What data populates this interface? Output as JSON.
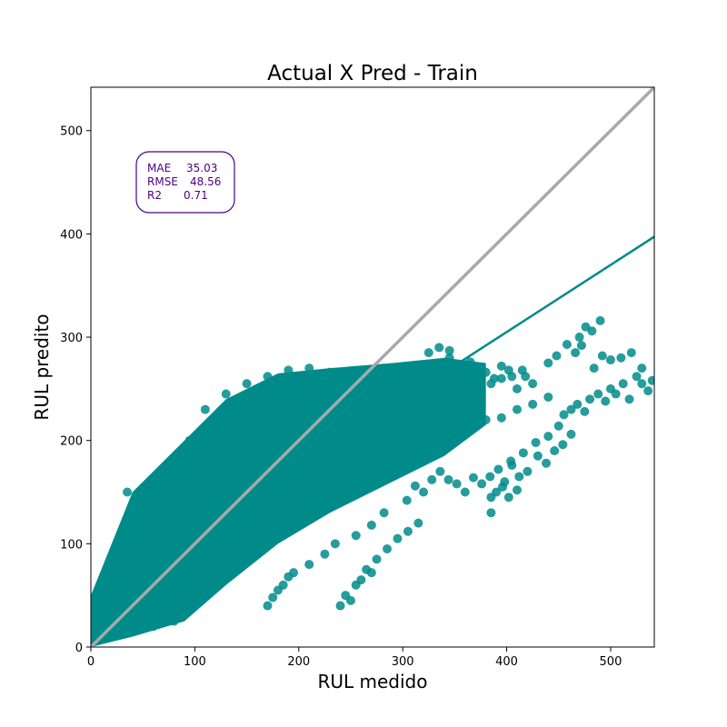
{
  "chart_data": {
    "type": "scatter",
    "title": "Actual X Pred - Train",
    "xlabel": "RUL medido",
    "ylabel": "RUL predito",
    "xlim": [
      0,
      542
    ],
    "ylim": [
      0,
      542
    ],
    "xticks": [
      0,
      100,
      200,
      300,
      400,
      500
    ],
    "yticks": [
      0,
      100,
      200,
      300,
      400,
      500
    ],
    "grid": false,
    "point_color": "#008b8b",
    "identity_line_color": "#a9a9a9",
    "regression_line_color": "#008b8b",
    "regression_line": {
      "intercept": 45,
      "slope": 0.65
    },
    "identity_line": {
      "x": [
        0,
        542
      ],
      "y": [
        0,
        542
      ]
    },
    "metrics_color": "#4b0082",
    "metrics": [
      {
        "label": "MAE",
        "value": "35.03"
      },
      {
        "label": "RMSE",
        "value": "48.56"
      },
      {
        "label": "R2",
        "value": "0.71"
      }
    ],
    "metrics_box_position": "top-left",
    "scatter_bands": [
      {
        "x": [
          0,
          40,
          90,
          130,
          180,
          230,
          290,
          340,
          380
        ],
        "y_low": [
          0,
          10,
          25,
          60,
          100,
          130,
          160,
          185,
          215
        ],
        "y_high": [
          50,
          150,
          200,
          240,
          265,
          270,
          275,
          280,
          275
        ]
      }
    ],
    "sample_points": [
      [
        455,
        225
      ],
      [
        462,
        230
      ],
      [
        468,
        235
      ],
      [
        475,
        228
      ],
      [
        480,
        240
      ],
      [
        488,
        245
      ],
      [
        495,
        238
      ],
      [
        500,
        250
      ],
      [
        505,
        245
      ],
      [
        512,
        255
      ],
      [
        518,
        240
      ],
      [
        525,
        262
      ],
      [
        530,
        255
      ],
      [
        536,
        248
      ],
      [
        540,
        258
      ],
      [
        470,
        300
      ],
      [
        476,
        310
      ],
      [
        482,
        306
      ],
      [
        490,
        316
      ],
      [
        472,
        292
      ],
      [
        466,
        285
      ],
      [
        458,
        293
      ],
      [
        530,
        270
      ],
      [
        520,
        285
      ],
      [
        510,
        280
      ],
      [
        500,
        278
      ],
      [
        492,
        282
      ],
      [
        484,
        270
      ],
      [
        448,
        282
      ],
      [
        440,
        275
      ],
      [
        425,
        255
      ],
      [
        418,
        262
      ],
      [
        410,
        250
      ],
      [
        402,
        268
      ],
      [
        395,
        272
      ],
      [
        388,
        260
      ],
      [
        380,
        266
      ],
      [
        372,
        255
      ],
      [
        365,
        276
      ],
      [
        356,
        268
      ],
      [
        350,
        259
      ],
      [
        345,
        280
      ],
      [
        338,
        271
      ],
      [
        420,
        170
      ],
      [
        412,
        165
      ],
      [
        405,
        176
      ],
      [
        398,
        160
      ],
      [
        430,
        185
      ],
      [
        438,
        178
      ],
      [
        446,
        190
      ],
      [
        454,
        196
      ],
      [
        462,
        206
      ],
      [
        450,
        214
      ],
      [
        440,
        204
      ],
      [
        428,
        198
      ],
      [
        416,
        188
      ],
      [
        404,
        180
      ],
      [
        392,
        172
      ],
      [
        384,
        165
      ],
      [
        376,
        158
      ],
      [
        368,
        164
      ],
      [
        360,
        150
      ],
      [
        352,
        158
      ],
      [
        344,
        162
      ],
      [
        336,
        170
      ],
      [
        328,
        162
      ],
      [
        320,
        150
      ],
      [
        312,
        156
      ],
      [
        304,
        142
      ],
      [
        390,
        150
      ],
      [
        385,
        130
      ],
      [
        385,
        145
      ],
      [
        396,
        155
      ],
      [
        402,
        145
      ],
      [
        410,
        152
      ],
      [
        80,
        80
      ],
      [
        90,
        95
      ],
      [
        100,
        110
      ],
      [
        120,
        130
      ],
      [
        140,
        150
      ],
      [
        160,
        170
      ],
      [
        180,
        175
      ],
      [
        200,
        195
      ],
      [
        220,
        200
      ],
      [
        240,
        210
      ],
      [
        260,
        220
      ],
      [
        280,
        225
      ],
      [
        60,
        150
      ],
      [
        70,
        160
      ],
      [
        85,
        185
      ],
      [
        95,
        200
      ],
      [
        110,
        230
      ],
      [
        130,
        245
      ],
      [
        150,
        255
      ],
      [
        170,
        262
      ],
      [
        190,
        268
      ],
      [
        210,
        270
      ],
      [
        230,
        266
      ],
      [
        250,
        263
      ],
      [
        40,
        70
      ],
      [
        50,
        95
      ],
      [
        25,
        80
      ],
      [
        30,
        110
      ],
      [
        60,
        120
      ],
      [
        75,
        130
      ],
      [
        35,
        150
      ],
      [
        45,
        140
      ],
      [
        20,
        60
      ],
      [
        15,
        55
      ],
      [
        10,
        40
      ],
      [
        5,
        35
      ],
      [
        60,
        20
      ],
      [
        70,
        30
      ],
      [
        80,
        25
      ],
      [
        90,
        40
      ],
      [
        100,
        50
      ],
      [
        110,
        60
      ],
      [
        120,
        75
      ],
      [
        140,
        90
      ],
      [
        160,
        100
      ],
      [
        180,
        110
      ],
      [
        200,
        120
      ],
      [
        220,
        130
      ],
      [
        240,
        40
      ],
      [
        245,
        50
      ],
      [
        250,
        45
      ],
      [
        255,
        60
      ],
      [
        260,
        65
      ],
      [
        265,
        75
      ],
      [
        270,
        72
      ],
      [
        275,
        85
      ],
      [
        285,
        95
      ],
      [
        295,
        105
      ],
      [
        305,
        112
      ],
      [
        315,
        120
      ],
      [
        170,
        40
      ],
      [
        175,
        48
      ],
      [
        180,
        55
      ],
      [
        185,
        60
      ],
      [
        190,
        68
      ],
      [
        195,
        72
      ],
      [
        210,
        80
      ],
      [
        225,
        90
      ],
      [
        235,
        100
      ],
      [
        255,
        108
      ],
      [
        270,
        118
      ],
      [
        282,
        130
      ],
      [
        300,
        180
      ],
      [
        320,
        195
      ],
      [
        340,
        210
      ],
      [
        360,
        215
      ],
      [
        380,
        220
      ],
      [
        395,
        222
      ],
      [
        410,
        230
      ],
      [
        425,
        235
      ],
      [
        440,
        242
      ],
      [
        330,
        240
      ],
      [
        350,
        245
      ],
      [
        370,
        250
      ],
      [
        385,
        255
      ],
      [
        395,
        260
      ],
      [
        405,
        262
      ],
      [
        415,
        268
      ],
      [
        325,
        285
      ],
      [
        335,
        290
      ],
      [
        345,
        287
      ]
    ]
  }
}
